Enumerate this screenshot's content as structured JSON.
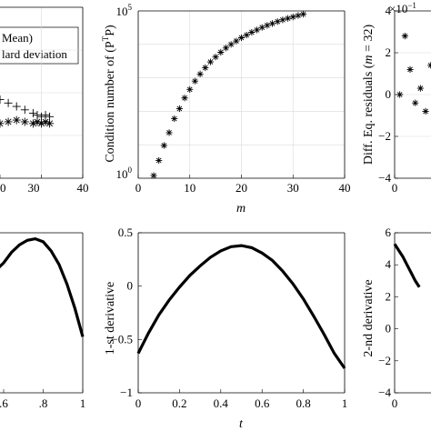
{
  "chart_data": [
    {
      "id": "p1",
      "type": "scatter",
      "xticks": [
        "20",
        "30",
        "40"
      ],
      "ylabel": "",
      "xlabel": "",
      "xlim": [
        20,
        40
      ],
      "grid": true,
      "legend": {
        "placement": "top",
        "entries": [
          "Mean)",
          "lard deviation"
        ]
      },
      "series": [
        {
          "marker": "plus",
          "x": [
            20,
            22,
            24,
            26,
            28,
            29,
            30,
            31,
            32
          ],
          "y": [
            0.46,
            0.44,
            0.42,
            0.4,
            0.38,
            0.37,
            0.36,
            0.37,
            0.36
          ]
        },
        {
          "marker": "star",
          "x": [
            20,
            22,
            24,
            26,
            28,
            29,
            30,
            31,
            32
          ],
          "y": [
            0.32,
            0.33,
            0.34,
            0.33,
            0.32,
            0.33,
            0.32,
            0.33,
            0.32
          ]
        }
      ]
    },
    {
      "id": "p2",
      "type": "scatter",
      "yscale": "log",
      "xlabel": "m",
      "ylabel": "Condition number of (P",
      "ylabel_sup": "T",
      "ylabel_end": "P)",
      "xlim": [
        0,
        40
      ],
      "ylim": [
        1,
        100000
      ],
      "xticks": [
        "0",
        "10",
        "20",
        "30",
        "40"
      ],
      "yticks": [
        {
          "base": "10",
          "exp": "0"
        },
        {
          "base": "10",
          "exp": "5"
        }
      ],
      "grid": true,
      "series": [
        {
          "marker": "star",
          "x": [
            3,
            4,
            5,
            6,
            7,
            8,
            9,
            10,
            11,
            12,
            13,
            14,
            15,
            16,
            17,
            18,
            19,
            20,
            21,
            22,
            23,
            24,
            25,
            26,
            27,
            28,
            29,
            30,
            31,
            32
          ],
          "y": [
            1.2,
            3.4,
            9.5,
            23,
            60,
            120,
            250,
            450,
            800,
            1300,
            2000,
            3000,
            4200,
            5800,
            7800,
            10000,
            12600,
            15800,
            19000,
            23000,
            27000,
            32000,
            37000,
            42000,
            48000,
            54000,
            60000,
            66000,
            73000,
            80000
          ]
        }
      ]
    },
    {
      "id": "p3",
      "type": "scatter",
      "ylabel": "Diff. Eq. residuals (m = 32)",
      "ylabel_parts": [
        "Diff. Eq. residuals (",
        "m",
        " = 32)"
      ],
      "xlim": [
        0,
        40
      ],
      "ylim": [
        -4,
        4
      ],
      "xticks": [
        "0",
        "10"
      ],
      "yticks": [
        "4",
        "2",
        "0",
        "−2",
        "−4"
      ],
      "exponent_label": "×10",
      "exponent_sup": "−1",
      "grid": true,
      "series": [
        {
          "marker": "star",
          "x": [
            1,
            2,
            3,
            4,
            5,
            6,
            7,
            8,
            9,
            10,
            11,
            12,
            13,
            14,
            15,
            16,
            17,
            18,
            19,
            20
          ],
          "y": [
            0.0,
            2.8,
            1.2,
            -0.4,
            0.3,
            -0.8,
            1.4,
            -1.0,
            0.9,
            -0.6,
            0.4,
            -1.3,
            1.2,
            -2.4,
            0.2,
            -0.9,
            1.7,
            -2.8,
            0.9,
            0.3
          ]
        }
      ]
    },
    {
      "id": "p4",
      "type": "line",
      "xticks": [
        ".6",
        ".8",
        "1"
      ],
      "xlim": [
        0.6,
        1.0
      ],
      "grid": false,
      "series": [
        {
          "x": [
            0.52,
            0.6,
            0.64,
            0.68,
            0.72,
            0.76,
            0.8,
            0.84,
            0.88,
            0.92,
            0.96,
            1.0
          ],
          "y": [
            0.3,
            0.4,
            0.47,
            0.52,
            0.55,
            0.56,
            0.54,
            0.48,
            0.39,
            0.26,
            0.1,
            -0.09
          ]
        }
      ]
    },
    {
      "id": "p5",
      "type": "line",
      "xlabel": "t",
      "ylabel": "1-st derivative",
      "xlim": [
        0,
        1
      ],
      "ylim": [
        -1,
        0.5
      ],
      "xticks": [
        "0",
        "0.2",
        "0.4",
        "0.6",
        "0.8",
        "1"
      ],
      "yticks": [
        "0.5",
        "0",
        "−0.5",
        "−1"
      ],
      "grid": false,
      "series": [
        {
          "x": [
            0,
            0.05,
            0.1,
            0.15,
            0.2,
            0.25,
            0.3,
            0.35,
            0.4,
            0.45,
            0.5,
            0.55,
            0.6,
            0.65,
            0.7,
            0.75,
            0.8,
            0.85,
            0.9,
            0.95,
            1.0
          ],
          "y": [
            -0.63,
            -0.44,
            -0.27,
            -0.13,
            -0.01,
            0.1,
            0.19,
            0.27,
            0.33,
            0.37,
            0.38,
            0.36,
            0.31,
            0.24,
            0.14,
            0.02,
            -0.12,
            -0.28,
            -0.45,
            -0.63,
            -0.77
          ]
        }
      ]
    },
    {
      "id": "p6",
      "type": "line",
      "ylabel": "2-nd derivative",
      "xlim": [
        0,
        1
      ],
      "ylim": [
        -4,
        6
      ],
      "xticks": [
        "0"
      ],
      "yticks": [
        "6",
        "4",
        "2",
        "0",
        "−2",
        "−4"
      ],
      "grid": false,
      "series": [
        {
          "x": [
            0,
            0.02,
            0.04,
            0.06,
            0.08,
            0.1,
            0.12
          ],
          "y": [
            5.3,
            4.9,
            4.5,
            4.0,
            3.5,
            3.0,
            2.6
          ]
        }
      ]
    }
  ]
}
